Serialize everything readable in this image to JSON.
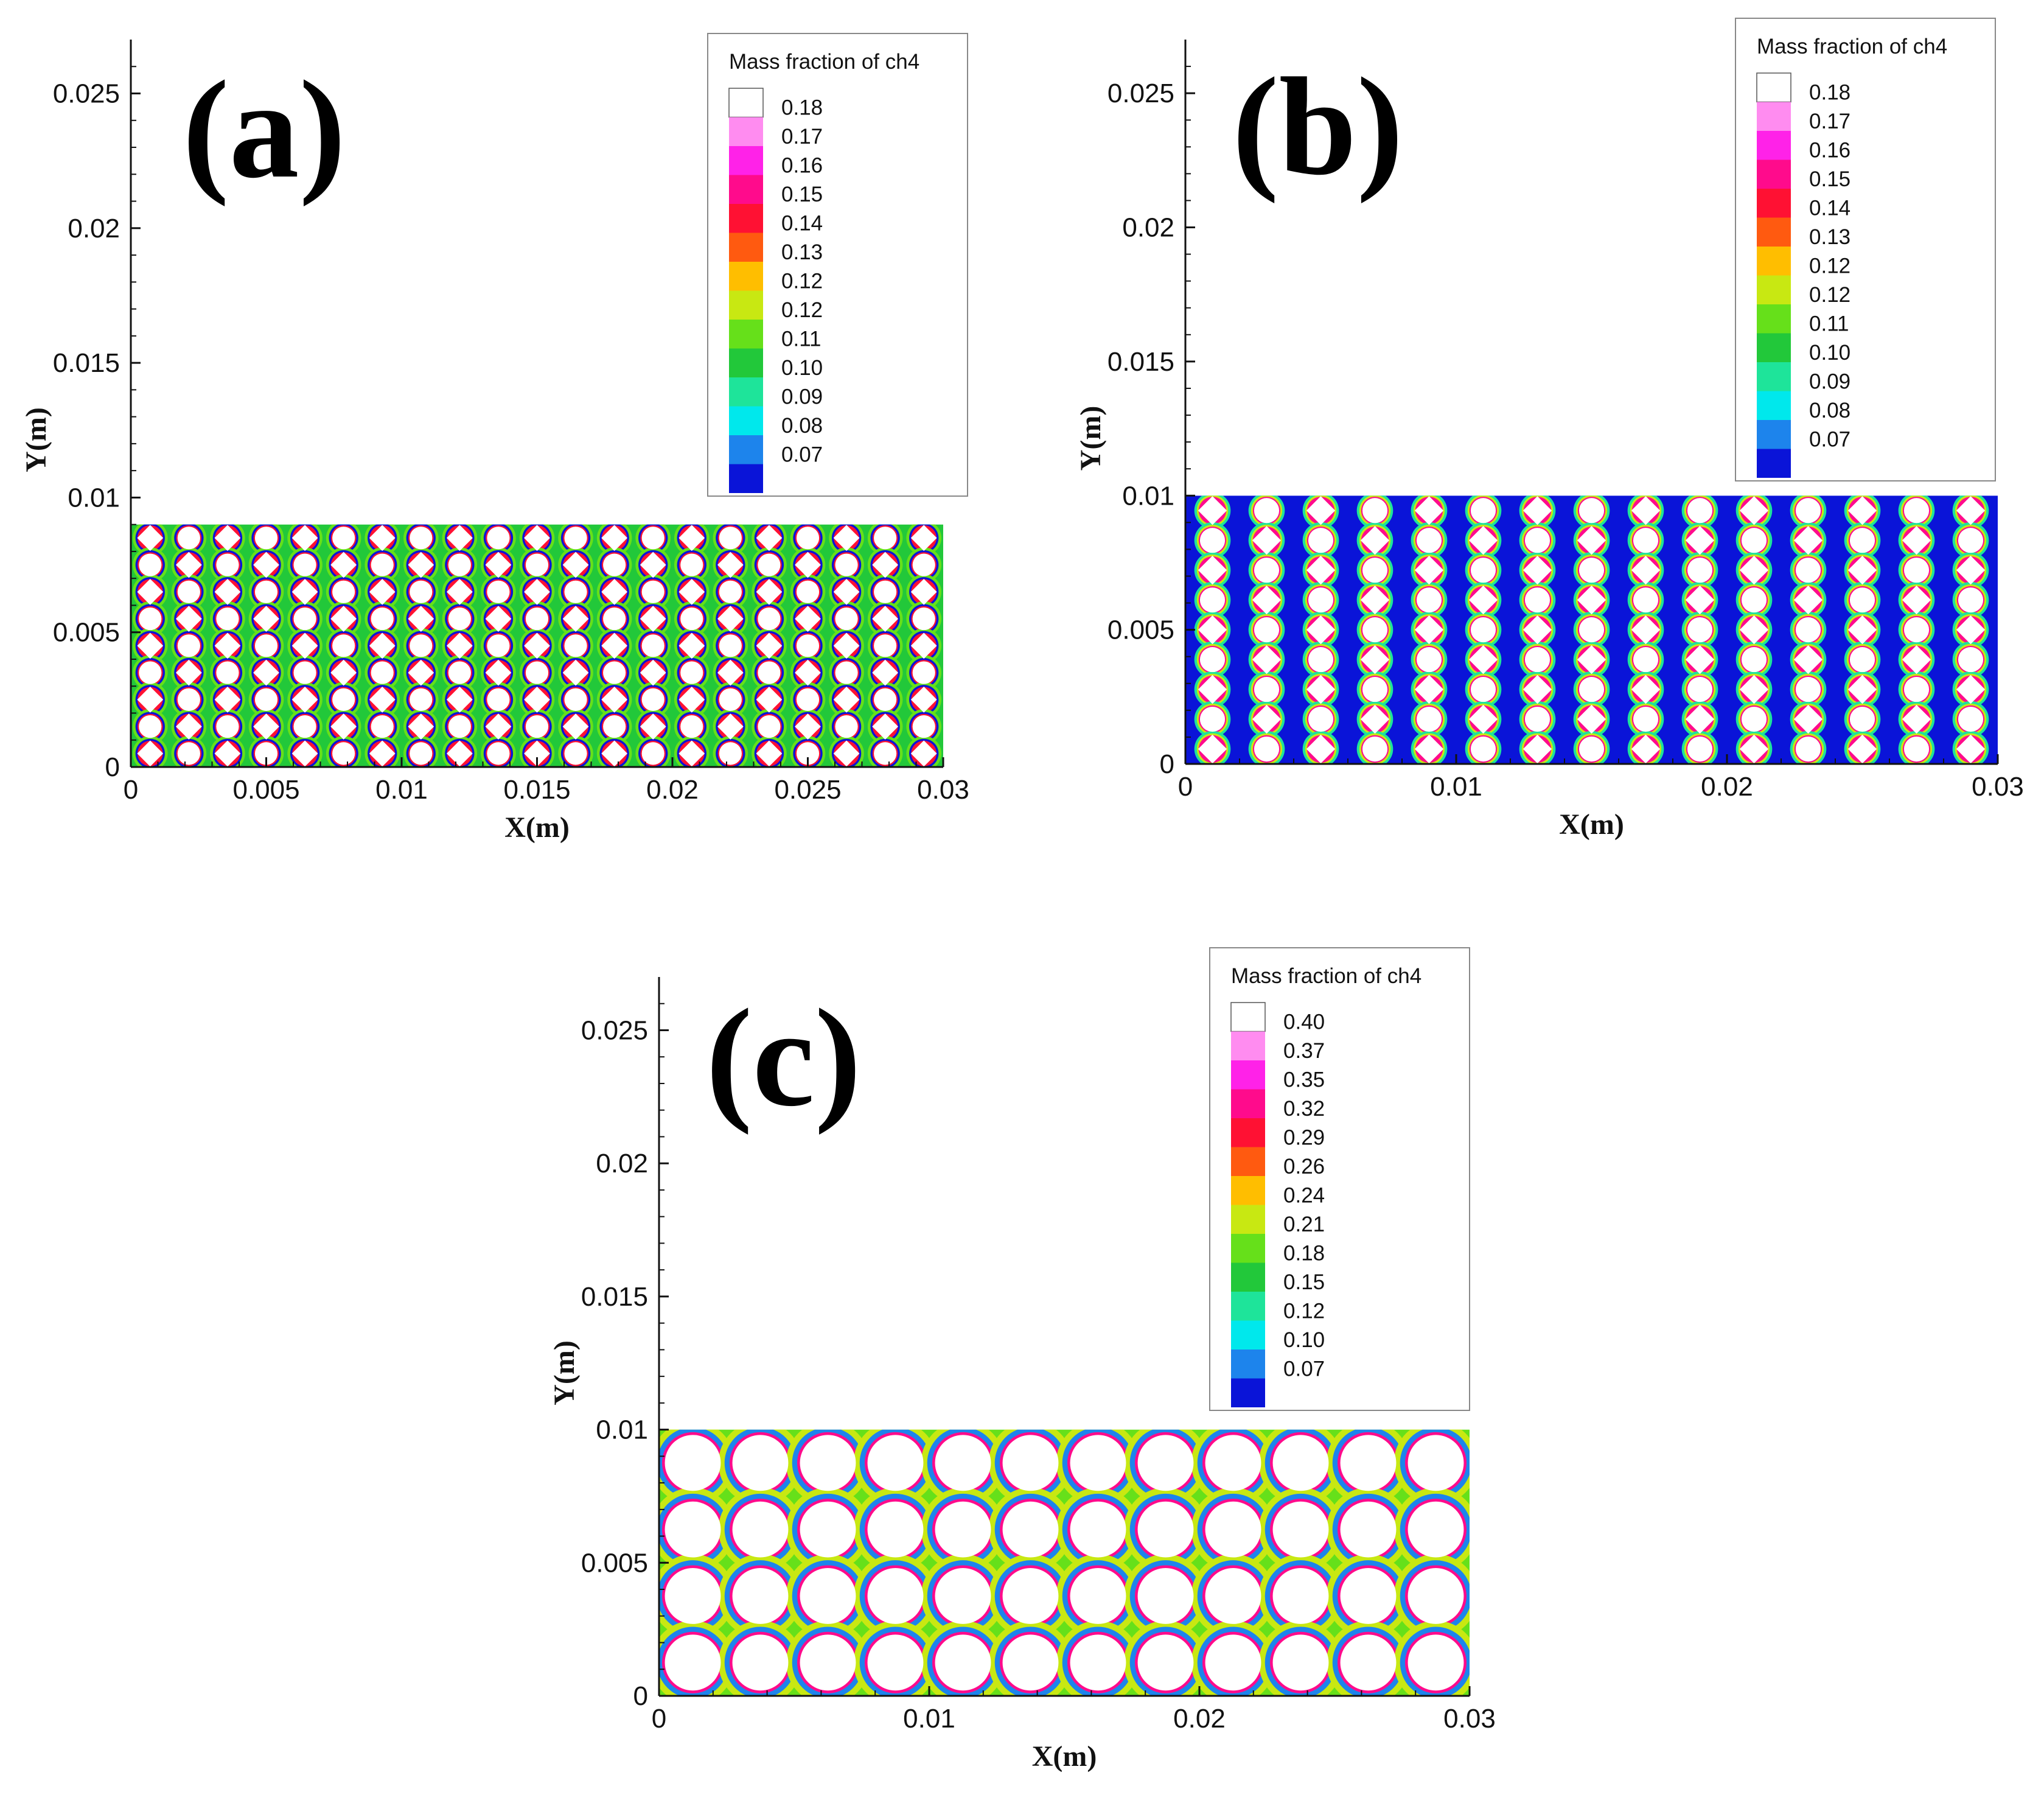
{
  "figure": {
    "title": ""
  },
  "colorscale": {
    "panel_ab": [
      "#ffffff",
      "#ff8cf0",
      "#ff22e8",
      "#ff0b8c",
      "#ff1133",
      "#ff5a10",
      "#ffbe00",
      "#c8e812",
      "#66e01a",
      "#22c83a",
      "#1ee49a",
      "#00e8ec",
      "#1d84ec",
      "#0a14d8"
    ],
    "panel_c": [
      "#ffffff",
      "#ff8cf0",
      "#ff22e8",
      "#ff0b8c",
      "#ff1133",
      "#ff5a10",
      "#ffbe00",
      "#c8e812",
      "#66e01a",
      "#22c83a",
      "#1ee49a",
      "#00e8ec",
      "#1d84ec",
      "#0a14d8"
    ]
  },
  "chart_data": [
    {
      "panel": "(a)",
      "type": "heatmap",
      "title": "",
      "xlabel": "X(m)",
      "ylabel": "Y(m)",
      "xlim": [
        0,
        0.03
      ],
      "ylim": [
        0,
        0.027
      ],
      "xticks": [
        0,
        0.005,
        0.01,
        0.015,
        0.02,
        0.025,
        0.03
      ],
      "xtick_labels": [
        "0",
        "0.005",
        "0.01",
        "0.015",
        "0.02",
        "0.025",
        "0.03"
      ],
      "yticks": [
        0,
        0.005,
        0.01,
        0.015,
        0.02,
        0.025
      ],
      "ytick_labels": [
        "0",
        "0.005",
        "0.01",
        "0.015",
        "0.02",
        "0.025"
      ],
      "domain_height": 0.009,
      "field_variable": "Mass fraction of ch4",
      "packing": {
        "columns": 21,
        "rows": 9,
        "pattern": "alternating circles and diamonds",
        "dominant_level": "mid"
      },
      "legend": {
        "title": "Mass fraction of ch4",
        "position": "top-right",
        "levels": [
          "0.18",
          "0.17",
          "0.16",
          "0.15",
          "0.14",
          "0.13",
          "0.12",
          "0.12",
          "0.11",
          "0.10",
          "0.09",
          "0.08",
          "0.07"
        ]
      }
    },
    {
      "panel": "(b)",
      "type": "heatmap",
      "title": "",
      "xlabel": "X(m)",
      "ylabel": "Y(m)",
      "xlim": [
        0,
        0.03
      ],
      "ylim": [
        0,
        0.027
      ],
      "xticks": [
        0,
        0.01,
        0.02,
        0.03
      ],
      "xtick_labels": [
        "0",
        "0.01",
        "0.02",
        "0.03"
      ],
      "yticks": [
        0,
        0.005,
        0.01,
        0.015,
        0.02,
        0.025
      ],
      "ytick_labels": [
        "0",
        "0.005",
        "0.01",
        "0.015",
        "0.02",
        "0.025"
      ],
      "domain_height": 0.01,
      "field_variable": "Mass fraction of ch4",
      "packing": {
        "columns": 15,
        "rows": 9,
        "pattern": "alternating circles and diamonds",
        "dominant_level": "low"
      },
      "legend": {
        "title": "Mass fraction of ch4",
        "position": "top-right",
        "levels": [
          "0.18",
          "0.17",
          "0.16",
          "0.15",
          "0.14",
          "0.13",
          "0.12",
          "0.12",
          "0.11",
          "0.10",
          "0.09",
          "0.08",
          "0.07"
        ]
      }
    },
    {
      "panel": "(c)",
      "type": "heatmap",
      "title": "",
      "xlabel": "X(m)",
      "ylabel": "Y(m)",
      "xlim": [
        0,
        0.03
      ],
      "ylim": [
        0,
        0.027
      ],
      "xticks": [
        0,
        0.01,
        0.02,
        0.03
      ],
      "xtick_labels": [
        "0",
        "0.01",
        "0.02",
        "0.03"
      ],
      "yticks": [
        0,
        0.005,
        0.01,
        0.015,
        0.02,
        0.025
      ],
      "ytick_labels": [
        "0",
        "0.005",
        "0.01",
        "0.015",
        "0.02",
        "0.025"
      ],
      "domain_height": 0.01,
      "field_variable": "Mass fraction of ch4",
      "packing": {
        "columns": 12,
        "rows": 4,
        "pattern": "uniform circles",
        "dominant_level": "mid-high"
      },
      "legend": {
        "title": "Mass fraction of ch4",
        "position": "top-right",
        "levels": [
          "0.40",
          "0.37",
          "0.35",
          "0.32",
          "0.29",
          "0.26",
          "0.24",
          "0.21",
          "0.18",
          "0.15",
          "0.12",
          "0.10",
          "0.07"
        ]
      }
    }
  ]
}
